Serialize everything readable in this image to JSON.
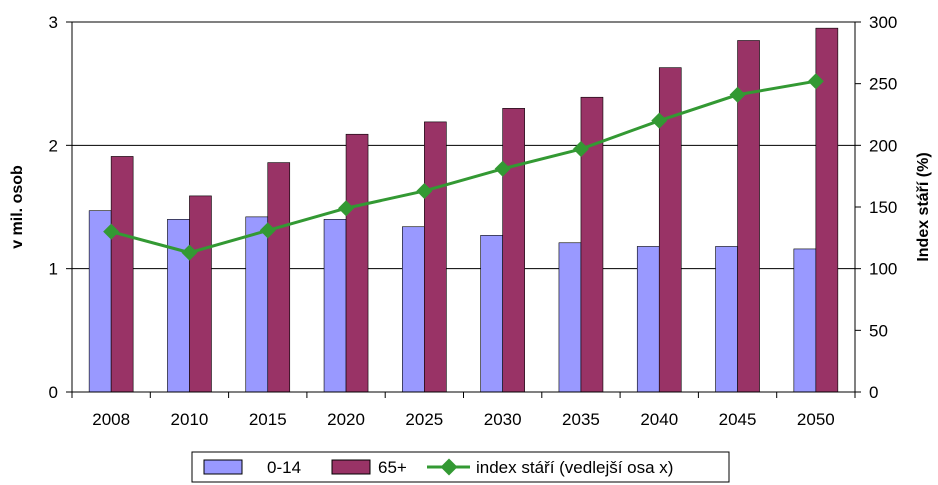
{
  "chart_data": {
    "type": "bar",
    "categories": [
      "2008",
      "2010",
      "2015",
      "2020",
      "2025",
      "2030",
      "2035",
      "2040",
      "2045",
      "2050"
    ],
    "series": [
      {
        "name": "0-14",
        "type": "bar",
        "axis": "left",
        "color": "#9999ff",
        "values": [
          1.47,
          1.4,
          1.42,
          1.4,
          1.34,
          1.27,
          1.21,
          1.18,
          1.18,
          1.16
        ]
      },
      {
        "name": "65+",
        "type": "bar",
        "axis": "left",
        "color": "#993366",
        "values": [
          1.91,
          1.59,
          1.86,
          2.09,
          2.19,
          2.3,
          2.39,
          2.63,
          2.85,
          2.95
        ]
      },
      {
        "name": "index stáří (vedlejší osa x)",
        "type": "line",
        "axis": "right",
        "color": "#339933",
        "values": [
          130,
          113,
          131,
          149,
          163,
          181,
          197,
          220,
          241,
          252
        ]
      }
    ],
    "ylabel": "v mil. osob",
    "y2label": "Index stáří (%)",
    "ylim": [
      0,
      3
    ],
    "y2lim": [
      0,
      300
    ],
    "yticks": [
      "0",
      "1",
      "2",
      "3"
    ],
    "y2ticks": [
      "0",
      "50",
      "100",
      "150",
      "200",
      "250",
      "300"
    ],
    "grid": true,
    "legend_position": "bottom"
  }
}
